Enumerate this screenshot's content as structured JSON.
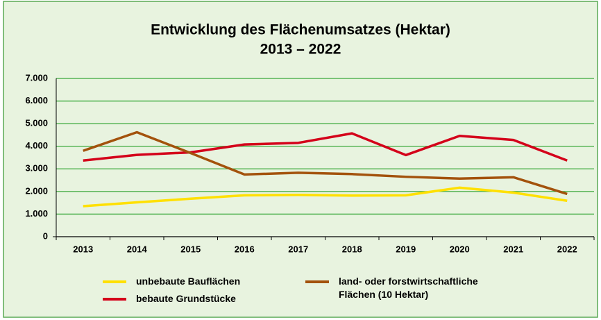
{
  "chart_data": {
    "type": "line",
    "title": "Entwicklung des Flächenumsatzes (Hektar)",
    "subtitle": "2013 – 2022",
    "categories": [
      "2013",
      "2014",
      "2015",
      "2016",
      "2017",
      "2018",
      "2019",
      "2020",
      "2021",
      "2022"
    ],
    "series": [
      {
        "name": "unbebaute Bauflächen",
        "color": "#ffe000",
        "values": [
          1350,
          1520,
          1680,
          1830,
          1850,
          1820,
          1830,
          2170,
          1950,
          1590
        ]
      },
      {
        "name": "bebaute Grundstücke",
        "color": "#d4001a",
        "values": [
          3370,
          3620,
          3730,
          4080,
          4150,
          4570,
          3610,
          4460,
          4280,
          3370
        ]
      },
      {
        "name": "land- oder forstwirtschaftliche Flächen (10 Hektar)",
        "color": "#a3520c",
        "values": [
          3800,
          4620,
          3700,
          2750,
          2830,
          2770,
          2650,
          2570,
          2630,
          1890
        ]
      }
    ],
    "ylim": [
      0,
      7000
    ],
    "yticks": [
      0,
      {
        "value": 1000,
        "label": "1.000"
      },
      {
        "value": 2000,
        "label": "2.000"
      },
      {
        "value": 3000,
        "label": "3.000"
      },
      {
        "value": 4000,
        "label": "4.000"
      },
      {
        "value": 5000,
        "label": "5.000"
      },
      {
        "value": 6000,
        "label": "6.000"
      },
      {
        "value": 7000,
        "label": "7.000"
      }
    ],
    "grid": true,
    "grid_color": "#3aa83a"
  }
}
